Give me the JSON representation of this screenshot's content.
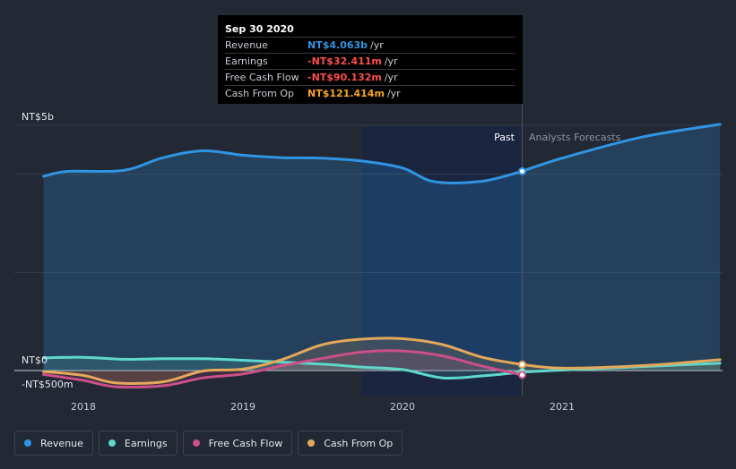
{
  "chart_data": {
    "type": "line",
    "title": "",
    "xlabel": "",
    "ylabel": "",
    "ylim": [
      -500,
      5000
    ],
    "y_labels": [
      "NT$5b",
      "NT$0",
      "-NT$500m"
    ],
    "x_tick_labels": [
      "2018",
      "2019",
      "2020",
      "2021"
    ],
    "past_label": "Past",
    "forecast_label": "Analysts Forecasts",
    "series": [
      {
        "name": "Revenue",
        "key": "revenue",
        "color": "#2f95e3",
        "past": [
          [
            2017.75,
            3960
          ],
          [
            2017.9,
            4060
          ],
          [
            2018.25,
            4080
          ],
          [
            2018.5,
            4340
          ],
          [
            2018.75,
            4480
          ],
          [
            2019,
            4390
          ],
          [
            2019.25,
            4340
          ],
          [
            2019.5,
            4330
          ],
          [
            2019.75,
            4270
          ],
          [
            2020,
            4130
          ],
          [
            2020.2,
            3850
          ],
          [
            2020.5,
            3860
          ],
          [
            2020.75,
            4063
          ]
        ],
        "forecast": [
          [
            2020.75,
            4063
          ],
          [
            2021,
            4330
          ],
          [
            2021.5,
            4760
          ],
          [
            2021.99,
            5020
          ]
        ]
      },
      {
        "name": "Earnings",
        "key": "earnings",
        "color": "#5fd8cc",
        "past": [
          [
            2017.75,
            260
          ],
          [
            2018,
            270
          ],
          [
            2018.25,
            230
          ],
          [
            2018.5,
            240
          ],
          [
            2018.75,
            240
          ],
          [
            2019,
            210
          ],
          [
            2019.5,
            130
          ],
          [
            2019.75,
            70
          ],
          [
            2020,
            20
          ],
          [
            2020.25,
            -150
          ],
          [
            2020.5,
            -110
          ],
          [
            2020.75,
            -32
          ]
        ],
        "forecast": [
          [
            2020.75,
            -32
          ],
          [
            2021,
            10
          ],
          [
            2021.5,
            80
          ],
          [
            2021.99,
            150
          ]
        ]
      },
      {
        "name": "Free Cash Flow",
        "key": "fcf",
        "color": "#cc4f8a",
        "past": [
          [
            2017.75,
            -80
          ],
          [
            2018,
            -200
          ],
          [
            2018.2,
            -330
          ],
          [
            2018.5,
            -310
          ],
          [
            2018.75,
            -150
          ],
          [
            2019,
            -70
          ],
          [
            2019.25,
            100
          ],
          [
            2019.5,
            250
          ],
          [
            2019.75,
            380
          ],
          [
            2020,
            400
          ],
          [
            2020.25,
            300
          ],
          [
            2020.5,
            90
          ],
          [
            2020.75,
            -90
          ]
        ],
        "forecast": []
      },
      {
        "name": "Cash From Op",
        "key": "cfo",
        "color": "#e3a85a",
        "past": [
          [
            2017.75,
            -20
          ],
          [
            2018,
            -100
          ],
          [
            2018.2,
            -250
          ],
          [
            2018.5,
            -230
          ],
          [
            2018.75,
            -10
          ],
          [
            2019,
            30
          ],
          [
            2019.25,
            230
          ],
          [
            2019.5,
            530
          ],
          [
            2019.75,
            640
          ],
          [
            2020,
            650
          ],
          [
            2020.25,
            530
          ],
          [
            2020.5,
            270
          ],
          [
            2020.75,
            121
          ]
        ],
        "forecast": [
          [
            2020.75,
            121
          ],
          [
            2021,
            50
          ],
          [
            2021.5,
            100
          ],
          [
            2021.99,
            220
          ]
        ]
      }
    ]
  },
  "tooltip": {
    "date": "Sep 30 2020",
    "rows": [
      {
        "name": "Revenue",
        "value": "NT$4.063b",
        "unit": "/yr",
        "color": "#2f95e3"
      },
      {
        "name": "Earnings",
        "value": "-NT$32.411m",
        "unit": "/yr",
        "color": "#ff4d4d"
      },
      {
        "name": "Free Cash Flow",
        "value": "-NT$90.132m",
        "unit": "/yr",
        "color": "#ff4d4d"
      },
      {
        "name": "Cash From Op",
        "value": "NT$121.414m",
        "unit": "/yr",
        "color": "#f5a524"
      }
    ]
  },
  "legend": [
    {
      "label": "Revenue",
      "color": "#2f95e3"
    },
    {
      "label": "Earnings",
      "color": "#5fd8cc"
    },
    {
      "label": "Free Cash Flow",
      "color": "#cc4f8a"
    },
    {
      "label": "Cash From Op",
      "color": "#e3a85a"
    }
  ]
}
